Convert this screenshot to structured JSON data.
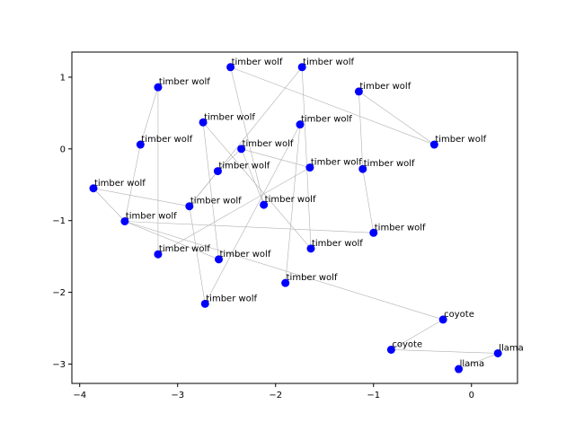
{
  "chart_data": {
    "type": "scatter",
    "title": "",
    "xlabel": "",
    "ylabel": "",
    "xlim": [
      -4.08,
      0.47
    ],
    "ylim": [
      -3.27,
      1.35
    ],
    "grid": false,
    "xticks": [
      -4,
      -3,
      -2,
      -1,
      0
    ],
    "yticks": [
      -3,
      -2,
      -1,
      0,
      1
    ],
    "point_color": "#0000ff",
    "edge_color": "#b0b0b0",
    "points": [
      {
        "id": 0,
        "x": -2.46,
        "y": 1.14,
        "label": "timber wolf"
      },
      {
        "id": 1,
        "x": -1.73,
        "y": 1.14,
        "label": "timber wolf"
      },
      {
        "id": 2,
        "x": -3.2,
        "y": 0.86,
        "label": "timber wolf"
      },
      {
        "id": 3,
        "x": -1.15,
        "y": 0.8,
        "label": "timber wolf"
      },
      {
        "id": 4,
        "x": -2.74,
        "y": 0.37,
        "label": "timber wolf"
      },
      {
        "id": 5,
        "x": -1.75,
        "y": 0.34,
        "label": "timber wolf"
      },
      {
        "id": 6,
        "x": -3.38,
        "y": 0.06,
        "label": "timber wolf"
      },
      {
        "id": 7,
        "x": -2.35,
        "y": 0.0,
        "label": "timber wolf"
      },
      {
        "id": 8,
        "x": -0.38,
        "y": 0.06,
        "label": "timber wolf"
      },
      {
        "id": 9,
        "x": -1.65,
        "y": -0.26,
        "label": "timber wolf"
      },
      {
        "id": 10,
        "x": -1.11,
        "y": -0.28,
        "label": "timber wolf"
      },
      {
        "id": 11,
        "x": -2.59,
        "y": -0.31,
        "label": "timber wolf"
      },
      {
        "id": 12,
        "x": -3.86,
        "y": -0.55,
        "label": "timber wolf"
      },
      {
        "id": 13,
        "x": -2.88,
        "y": -0.8,
        "label": "timber wolf"
      },
      {
        "id": 14,
        "x": -2.12,
        "y": -0.78,
        "label": "timber wolf"
      },
      {
        "id": 15,
        "x": -3.54,
        "y": -1.01,
        "label": "timber wolf"
      },
      {
        "id": 16,
        "x": -1.0,
        "y": -1.17,
        "label": "timber wolf"
      },
      {
        "id": 17,
        "x": -1.64,
        "y": -1.39,
        "label": "timber wolf"
      },
      {
        "id": 18,
        "x": -3.2,
        "y": -1.47,
        "label": "timber wolf"
      },
      {
        "id": 19,
        "x": -2.58,
        "y": -1.54,
        "label": "timber wolf"
      },
      {
        "id": 20,
        "x": -1.9,
        "y": -1.87,
        "label": "timber wolf"
      },
      {
        "id": 21,
        "x": -2.72,
        "y": -2.16,
        "label": "timber wolf"
      },
      {
        "id": 22,
        "x": -0.29,
        "y": -2.38,
        "label": "coyote"
      },
      {
        "id": 23,
        "x": -0.82,
        "y": -2.8,
        "label": "coyote"
      },
      {
        "id": 24,
        "x": 0.27,
        "y": -2.85,
        "label": "llama"
      },
      {
        "id": 25,
        "x": -0.13,
        "y": -3.07,
        "label": "llama"
      }
    ],
    "edges": [
      [
        2,
        6
      ],
      [
        2,
        18
      ],
      [
        6,
        15
      ],
      [
        15,
        12
      ],
      [
        12,
        13
      ],
      [
        15,
        16
      ],
      [
        4,
        19
      ],
      [
        4,
        17
      ],
      [
        0,
        14
      ],
      [
        0,
        8
      ],
      [
        1,
        13
      ],
      [
        1,
        17
      ],
      [
        3,
        10
      ],
      [
        3,
        8
      ],
      [
        10,
        16
      ],
      [
        7,
        9
      ],
      [
        7,
        11
      ],
      [
        7,
        14
      ],
      [
        5,
        20
      ],
      [
        5,
        21
      ],
      [
        11,
        13
      ],
      [
        9,
        18
      ],
      [
        19,
        15
      ],
      [
        21,
        13
      ],
      [
        15,
        22
      ],
      [
        22,
        23
      ],
      [
        23,
        24
      ],
      [
        24,
        25
      ]
    ]
  }
}
